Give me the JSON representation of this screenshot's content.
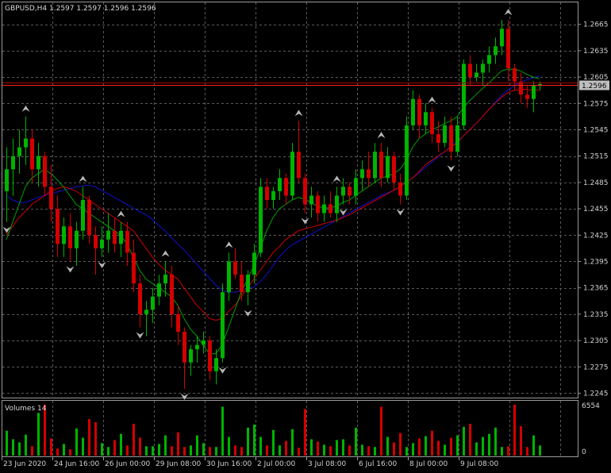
{
  "header": {
    "symbol_title": "GBPUSD,H4  1.2597 1.2597 1.2596 1.2596"
  },
  "volume_panel": {
    "title": "Volumes 14",
    "max_label": "6554",
    "zero_label": "0"
  },
  "current_price_label": "1.2596",
  "colors": {
    "background": "#000000",
    "grid": "#5a5a5a",
    "bull": "#00b400",
    "bear": "#d40000",
    "ma_fast": "#00a000",
    "ma_mid": "#d00000",
    "ma_slow": "#1010d0",
    "fractal": "#b8b8b8",
    "price_line": "#ff2020",
    "price_label_bg": "#c0c0c0"
  },
  "chart_data": {
    "type": "candlestick",
    "symbol": "GBPUSD",
    "timeframe": "H4",
    "last_ohlc": [
      1.2597,
      1.2597,
      1.2596,
      1.2596
    ],
    "ylim": [
      1.224,
      1.269
    ],
    "y_ticks": [
      "1.2665",
      "1.2635",
      "1.2605",
      "1.2575",
      "1.2545",
      "1.2515",
      "1.2485",
      "1.2455",
      "1.2425",
      "1.2395",
      "1.2365",
      "1.2335",
      "1.2305",
      "1.2275",
      "1.2245"
    ],
    "x_ticks": [
      "23 Jun 2020",
      "24 Jun 16:00",
      "26 Jun 00:00",
      "29 Jun 08:00",
      "30 Jun 16:00",
      "2 Jul 00:00",
      "3 Jul 08:00",
      "6 Jul 16:00",
      "8 Jul 00:00",
      "9 Jul 08:00"
    ],
    "current_price": 1.2596,
    "candles": [
      [
        1.2475,
        1.2525,
        1.244,
        1.25
      ],
      [
        1.25,
        1.2535,
        1.247,
        1.2515
      ],
      [
        1.2515,
        1.2545,
        1.2495,
        1.2525
      ],
      [
        1.2525,
        1.256,
        1.2505,
        1.2535
      ],
      [
        1.2535,
        1.2545,
        1.2485,
        1.25
      ],
      [
        1.25,
        1.253,
        1.248,
        1.2515
      ],
      [
        1.2515,
        1.252,
        1.247,
        1.248
      ],
      [
        1.248,
        1.2505,
        1.244,
        1.2455
      ],
      [
        1.2455,
        1.247,
        1.24,
        1.2415
      ],
      [
        1.2415,
        1.2445,
        1.24,
        1.2435
      ],
      [
        1.2435,
        1.245,
        1.2395,
        1.241
      ],
      [
        1.241,
        1.244,
        1.239,
        1.243
      ],
      [
        1.243,
        1.248,
        1.242,
        1.2465
      ],
      [
        1.2465,
        1.247,
        1.2415,
        1.2425
      ],
      [
        1.2425,
        1.2435,
        1.238,
        1.241
      ],
      [
        1.241,
        1.2435,
        1.24,
        1.242
      ],
      [
        1.242,
        1.245,
        1.2405,
        1.243
      ],
      [
        1.243,
        1.2445,
        1.2405,
        1.2415
      ],
      [
        1.2415,
        1.244,
        1.24,
        1.243
      ],
      [
        1.243,
        1.244,
        1.239,
        1.2405
      ],
      [
        1.2405,
        1.242,
        1.236,
        1.237
      ],
      [
        1.237,
        1.238,
        1.232,
        1.2335
      ],
      [
        1.2335,
        1.235,
        1.231,
        1.234
      ],
      [
        1.234,
        1.2365,
        1.2325,
        1.2355
      ],
      [
        1.2355,
        1.238,
        1.2345,
        1.237
      ],
      [
        1.237,
        1.2395,
        1.2355,
        1.238
      ],
      [
        1.238,
        1.239,
        1.232,
        1.2335
      ],
      [
        1.2335,
        1.2345,
        1.23,
        1.2315
      ],
      [
        1.2315,
        1.232,
        1.225,
        1.228
      ],
      [
        1.228,
        1.23,
        1.2265,
        1.2295
      ],
      [
        1.2295,
        1.231,
        1.228,
        1.23
      ],
      [
        1.23,
        1.2315,
        1.229,
        1.2305
      ],
      [
        1.2305,
        1.231,
        1.226,
        1.227
      ],
      [
        1.227,
        1.2295,
        1.2255,
        1.2285
      ],
      [
        1.2285,
        1.237,
        1.228,
        1.236
      ],
      [
        1.236,
        1.2405,
        1.235,
        1.2395
      ],
      [
        1.2395,
        1.241,
        1.2375,
        1.238
      ],
      [
        1.238,
        1.2395,
        1.235,
        1.236
      ],
      [
        1.236,
        1.2385,
        1.2345,
        1.238
      ],
      [
        1.238,
        1.2415,
        1.237,
        1.2405
      ],
      [
        1.2405,
        1.249,
        1.24,
        1.248
      ],
      [
        1.248,
        1.249,
        1.2455,
        1.2465
      ],
      [
        1.2465,
        1.248,
        1.2455,
        1.2475
      ],
      [
        1.2475,
        1.25,
        1.2465,
        1.249
      ],
      [
        1.249,
        1.2495,
        1.246,
        1.247
      ],
      [
        1.247,
        1.253,
        1.2465,
        1.252
      ],
      [
        1.252,
        1.2555,
        1.2485,
        1.249
      ],
      [
        1.249,
        1.2495,
        1.245,
        1.246
      ],
      [
        1.246,
        1.248,
        1.2445,
        1.247
      ],
      [
        1.247,
        1.2475,
        1.244,
        1.245
      ],
      [
        1.245,
        1.247,
        1.244,
        1.246
      ],
      [
        1.246,
        1.2475,
        1.2445,
        1.245
      ],
      [
        1.245,
        1.248,
        1.244,
        1.247
      ],
      [
        1.247,
        1.249,
        1.246,
        1.248
      ],
      [
        1.248,
        1.2485,
        1.246,
        1.247
      ],
      [
        1.247,
        1.25,
        1.246,
        1.249
      ],
      [
        1.249,
        1.251,
        1.2475,
        1.25
      ],
      [
        1.25,
        1.252,
        1.248,
        1.249
      ],
      [
        1.249,
        1.253,
        1.2485,
        1.252
      ],
      [
        1.252,
        1.253,
        1.248,
        1.249
      ],
      [
        1.249,
        1.2525,
        1.2485,
        1.2515
      ],
      [
        1.2515,
        1.252,
        1.2475,
        1.2485
      ],
      [
        1.2485,
        1.2495,
        1.246,
        1.247
      ],
      [
        1.247,
        1.256,
        1.2465,
        1.255
      ],
      [
        1.255,
        1.259,
        1.2545,
        1.258
      ],
      [
        1.258,
        1.2585,
        1.2535,
        1.255
      ],
      [
        1.255,
        1.2575,
        1.254,
        1.2565
      ],
      [
        1.2565,
        1.257,
        1.253,
        1.254
      ],
      [
        1.254,
        1.2555,
        1.252,
        1.253
      ],
      [
        1.253,
        1.256,
        1.2525,
        1.255
      ],
      [
        1.255,
        1.256,
        1.251,
        1.252
      ],
      [
        1.252,
        1.256,
        1.2515,
        1.255
      ],
      [
        1.255,
        1.2625,
        1.2545,
        1.262
      ],
      [
        1.262,
        1.263,
        1.2595,
        1.2605
      ],
      [
        1.2605,
        1.262,
        1.26,
        1.261
      ],
      [
        1.261,
        1.2625,
        1.2595,
        1.262
      ],
      [
        1.262,
        1.264,
        1.261,
        1.263
      ],
      [
        1.263,
        1.265,
        1.262,
        1.264
      ],
      [
        1.264,
        1.267,
        1.263,
        1.266
      ],
      [
        1.266,
        1.267,
        1.26,
        1.2615
      ],
      [
        1.2615,
        1.262,
        1.259,
        1.26
      ],
      [
        1.26,
        1.261,
        1.2575,
        1.2585
      ],
      [
        1.2585,
        1.2595,
        1.257,
        1.258
      ],
      [
        1.258,
        1.26,
        1.2565,
        1.2595
      ],
      [
        1.2595,
        1.26,
        1.259,
        1.2597
      ]
    ],
    "volumes": [
      3200,
      2100,
      1700,
      2700,
      1200,
      5500,
      6554,
      2200,
      900,
      1500,
      800,
      3500,
      2300,
      4700,
      4300,
      1600,
      1100,
      2000,
      2800,
      1300,
      4100,
      2300,
      1200,
      1200,
      1500,
      2600,
      1200,
      3000,
      1100,
      1300,
      2600,
      1600,
      1100,
      1100,
      6300,
      2400,
      1300,
      1100,
      3600,
      4000,
      2400,
      1300,
      3300,
      1300,
      1900,
      3400,
      1000,
      6000,
      2100,
      1800,
      1400,
      1200,
      2000,
      2100,
      1300,
      3600,
      1400,
      1200,
      1100,
      6300,
      2400,
      1700,
      2900,
      1100,
      1600,
      2200,
      2500,
      3200,
      1900,
      1400,
      2300,
      2600,
      3700,
      4100,
      1700,
      2400,
      2800,
      3600,
      1100,
      1200,
      6554,
      3800,
      1100,
      2600,
      1300
    ],
    "ma_fast": [
      1.242,
      1.244,
      1.246,
      1.248,
      1.249,
      1.2495,
      1.25,
      1.2495,
      1.2488,
      1.248,
      1.247,
      1.246,
      1.2455,
      1.245,
      1.2445,
      1.244,
      1.2435,
      1.243,
      1.2425,
      1.2415,
      1.24,
      1.2385,
      1.2375,
      1.237,
      1.2365,
      1.236,
      1.2355,
      1.2345,
      1.233,
      1.2318,
      1.231,
      1.23,
      1.229,
      1.229,
      1.23,
      1.232,
      1.234,
      1.236,
      1.2375,
      1.239,
      1.241,
      1.243,
      1.2445,
      1.2455,
      1.246,
      1.2465,
      1.2468,
      1.2466,
      1.2462,
      1.2458,
      1.2456,
      1.2456,
      1.2458,
      1.2462,
      1.2465,
      1.247,
      1.2475,
      1.248,
      1.2485,
      1.249,
      1.2492,
      1.2495,
      1.25,
      1.251,
      1.2525,
      1.2535,
      1.254,
      1.2545,
      1.2548,
      1.2552,
      1.2555,
      1.256,
      1.257,
      1.2578,
      1.2585,
      1.2592,
      1.2598,
      1.2605,
      1.2612,
      1.2614,
      1.2614,
      1.2612,
      1.2608,
      1.2605,
      1.2603
    ],
    "ma_mid": [
      1.2425,
      1.2435,
      1.2445,
      1.2452,
      1.246,
      1.2465,
      1.247,
      1.2475,
      1.2478,
      1.248,
      1.2478,
      1.2475,
      1.247,
      1.2465,
      1.246,
      1.2455,
      1.245,
      1.2445,
      1.244,
      1.2435,
      1.243,
      1.242,
      1.241,
      1.24,
      1.2392,
      1.2385,
      1.238,
      1.2375,
      1.2365,
      1.2355,
      1.2345,
      1.2338,
      1.233,
      1.2328,
      1.233,
      1.2338,
      1.2345,
      1.2355,
      1.2365,
      1.2375,
      1.2385,
      1.2395,
      1.2405,
      1.2412,
      1.242,
      1.2425,
      1.243,
      1.2432,
      1.2434,
      1.2436,
      1.2438,
      1.244,
      1.2442,
      1.2445,
      1.2448,
      1.2452,
      1.2456,
      1.246,
      1.2464,
      1.2468,
      1.2472,
      1.2476,
      1.248,
      1.2485,
      1.249,
      1.2497,
      1.2505,
      1.251,
      1.2515,
      1.252,
      1.2525,
      1.253,
      1.2538,
      1.2545,
      1.2552,
      1.256,
      1.2568,
      1.2575,
      1.2582,
      1.2587,
      1.259,
      1.2591,
      1.2591,
      1.259,
      1.259
    ],
    "ma_slow": [
      1.247,
      1.2465,
      1.2462,
      1.2462,
      1.2465,
      1.2468,
      1.247,
      1.2472,
      1.2474,
      1.2476,
      1.2478,
      1.248,
      1.2481,
      1.2482,
      1.248,
      1.2476,
      1.2472,
      1.2468,
      1.2464,
      1.246,
      1.2456,
      1.2452,
      1.2448,
      1.2443,
      1.2436,
      1.243,
      1.2422,
      1.2415,
      1.2408,
      1.24,
      1.2392,
      1.2384,
      1.2376,
      1.2368,
      1.2362,
      1.236,
      1.236,
      1.2362,
      1.2364,
      1.2366,
      1.2372,
      1.238,
      1.239,
      1.24,
      1.2408,
      1.2414,
      1.2418,
      1.2422,
      1.2426,
      1.243,
      1.2434,
      1.2438,
      1.2442,
      1.2446,
      1.245,
      1.2454,
      1.2458,
      1.2462,
      1.2466,
      1.247,
      1.2473,
      1.2476,
      1.248,
      1.2485,
      1.249,
      1.2496,
      1.2502,
      1.2508,
      1.2514,
      1.252,
      1.2526,
      1.2532,
      1.2538,
      1.2545,
      1.2552,
      1.256,
      1.2568,
      1.2576,
      1.2584,
      1.259,
      1.2595,
      1.2599,
      1.2602,
      1.2604,
      1.2606
    ],
    "fractals": [
      {
        "i": 0,
        "type": "down"
      },
      {
        "i": 3,
        "type": "up"
      },
      {
        "i": 10,
        "type": "down"
      },
      {
        "i": 12,
        "type": "up"
      },
      {
        "i": 15,
        "type": "down"
      },
      {
        "i": 18,
        "type": "up"
      },
      {
        "i": 21,
        "type": "down"
      },
      {
        "i": 25,
        "type": "up"
      },
      {
        "i": 28,
        "type": "down"
      },
      {
        "i": 34,
        "type": "down"
      },
      {
        "i": 35,
        "type": "up"
      },
      {
        "i": 38,
        "type": "down"
      },
      {
        "i": 46,
        "type": "up"
      },
      {
        "i": 47,
        "type": "down"
      },
      {
        "i": 52,
        "type": "up"
      },
      {
        "i": 53,
        "type": "down"
      },
      {
        "i": 59,
        "type": "up"
      },
      {
        "i": 62,
        "type": "down"
      },
      {
        "i": 67,
        "type": "up"
      },
      {
        "i": 70,
        "type": "down"
      },
      {
        "i": 79,
        "type": "up"
      }
    ]
  }
}
